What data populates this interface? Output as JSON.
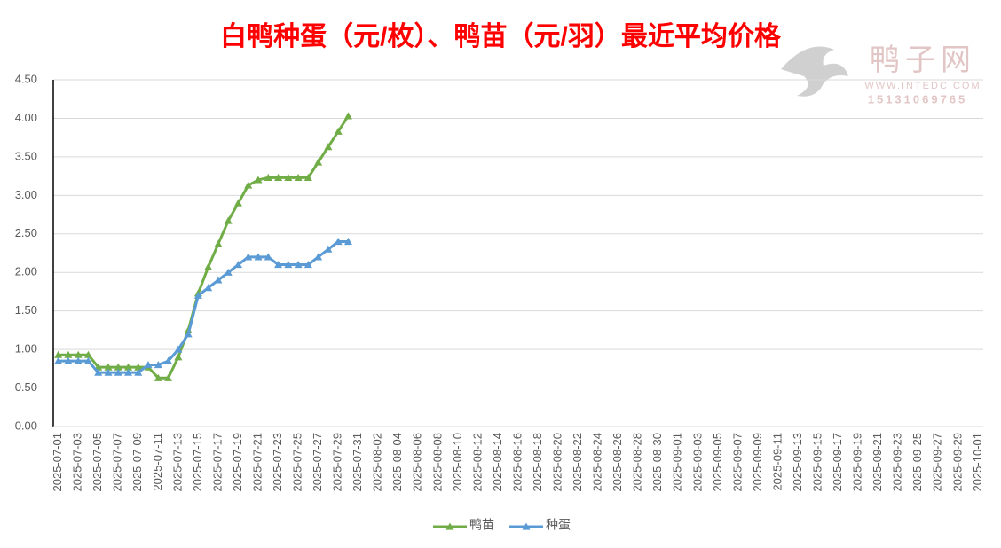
{
  "chart_data": {
    "type": "line",
    "title": "白鸭种蛋（元/枚）、鸭苗（元/羽）最近平均价格",
    "watermark": {
      "name": "鸭子网",
      "url": "WWW.INTEDC.COM",
      "phone": "15131069765"
    },
    "categories": [
      "2025-07-01",
      null,
      "2025-07-03",
      null,
      "2025-07-05",
      null,
      "2025-07-07",
      null,
      "2025-07-09",
      null,
      "2025-07-11",
      null,
      "2025-07-13",
      null,
      "2025-07-15",
      null,
      "2025-07-17",
      null,
      "2025-07-19",
      null,
      "2025-07-21",
      null,
      "2025-07-23",
      null,
      "2025-07-25",
      null,
      "2025-07-27",
      null,
      "2025-07-29",
      null,
      "2025-07-31",
      null,
      "2025-08-02",
      null,
      "2025-08-04",
      null,
      "2025-08-06",
      null,
      "2025-08-08",
      null,
      "2025-08-10",
      null,
      "2025-08-12",
      null,
      "2025-08-14",
      null,
      "2025-08-16",
      null,
      "2025-08-18",
      null,
      "2025-08-20",
      null,
      "2025-08-22",
      null,
      "2025-08-24",
      null,
      "2025-08-26",
      null,
      "2025-08-28",
      null,
      "2025-08-30",
      null,
      "2025-09-01",
      null,
      "2025-09-03",
      null,
      "2025-09-05",
      null,
      "2025-09-07",
      null,
      "2025-09-09",
      null,
      "2025-09-11",
      null,
      "2025-09-13",
      null,
      "2025-09-15",
      null,
      "2025-09-17",
      null,
      "2025-09-19",
      null,
      "2025-09-21",
      null,
      "2025-09-23",
      null,
      "2025-09-25",
      null,
      "2025-09-27",
      null,
      "2025-09-29",
      null,
      "2025-10-01"
    ],
    "series": [
      {
        "name": "鸭苗",
        "color": "#70ad47",
        "values": [
          0.93,
          0.93,
          0.93,
          0.93,
          0.77,
          0.77,
          0.77,
          0.77,
          0.77,
          0.77,
          0.63,
          0.63,
          0.9,
          1.25,
          1.73,
          2.07,
          2.37,
          2.67,
          2.9,
          3.13,
          3.2,
          3.23,
          3.23,
          3.23,
          3.23,
          3.23,
          3.43,
          3.63,
          3.83,
          4.03,
          null,
          null,
          null,
          null,
          null,
          null,
          null,
          null,
          null,
          null,
          null,
          null,
          null,
          null,
          null,
          null,
          null,
          null,
          null,
          null,
          null,
          null,
          null,
          null,
          null,
          null,
          null,
          null,
          null,
          null,
          null,
          null,
          null,
          null,
          null,
          null,
          null,
          null,
          null,
          null,
          null,
          null,
          null,
          null,
          null,
          null,
          null,
          null,
          null,
          null,
          null,
          null,
          null,
          null,
          null,
          null,
          null,
          null,
          null,
          null,
          null,
          null,
          null
        ]
      },
      {
        "name": "种蛋",
        "color": "#5b9bd5",
        "values": [
          0.85,
          0.85,
          0.85,
          0.85,
          0.7,
          0.7,
          0.7,
          0.7,
          0.7,
          0.8,
          0.8,
          0.85,
          1.0,
          1.2,
          1.7,
          1.8,
          1.9,
          2.0,
          2.1,
          2.2,
          2.2,
          2.2,
          2.1,
          2.1,
          2.1,
          2.1,
          2.2,
          2.3,
          2.4,
          2.4,
          null,
          null,
          null,
          null,
          null,
          null,
          null,
          null,
          null,
          null,
          null,
          null,
          null,
          null,
          null,
          null,
          null,
          null,
          null,
          null,
          null,
          null,
          null,
          null,
          null,
          null,
          null,
          null,
          null,
          null,
          null,
          null,
          null,
          null,
          null,
          null,
          null,
          null,
          null,
          null,
          null,
          null,
          null,
          null,
          null,
          null,
          null,
          null,
          null,
          null,
          null,
          null,
          null,
          null,
          null,
          null,
          null,
          null,
          null,
          null,
          null,
          null,
          null
        ]
      }
    ],
    "ylim": [
      0,
      4.5
    ],
    "yticks": [
      {
        "value": 0,
        "label": "0.00"
      },
      {
        "value": 0.5,
        "label": "0.50"
      },
      {
        "value": 1,
        "label": "1.00"
      },
      {
        "value": 1.5,
        "label": "1.50"
      },
      {
        "value": 2,
        "label": "2.00"
      },
      {
        "value": 2.5,
        "label": "2.50"
      },
      {
        "value": 3,
        "label": "3.00"
      },
      {
        "value": 3.5,
        "label": "3.50"
      },
      {
        "value": 4,
        "label": "4.00"
      },
      {
        "value": 4.5,
        "label": "4.50"
      }
    ],
    "grid": true,
    "legend": "bottom"
  }
}
